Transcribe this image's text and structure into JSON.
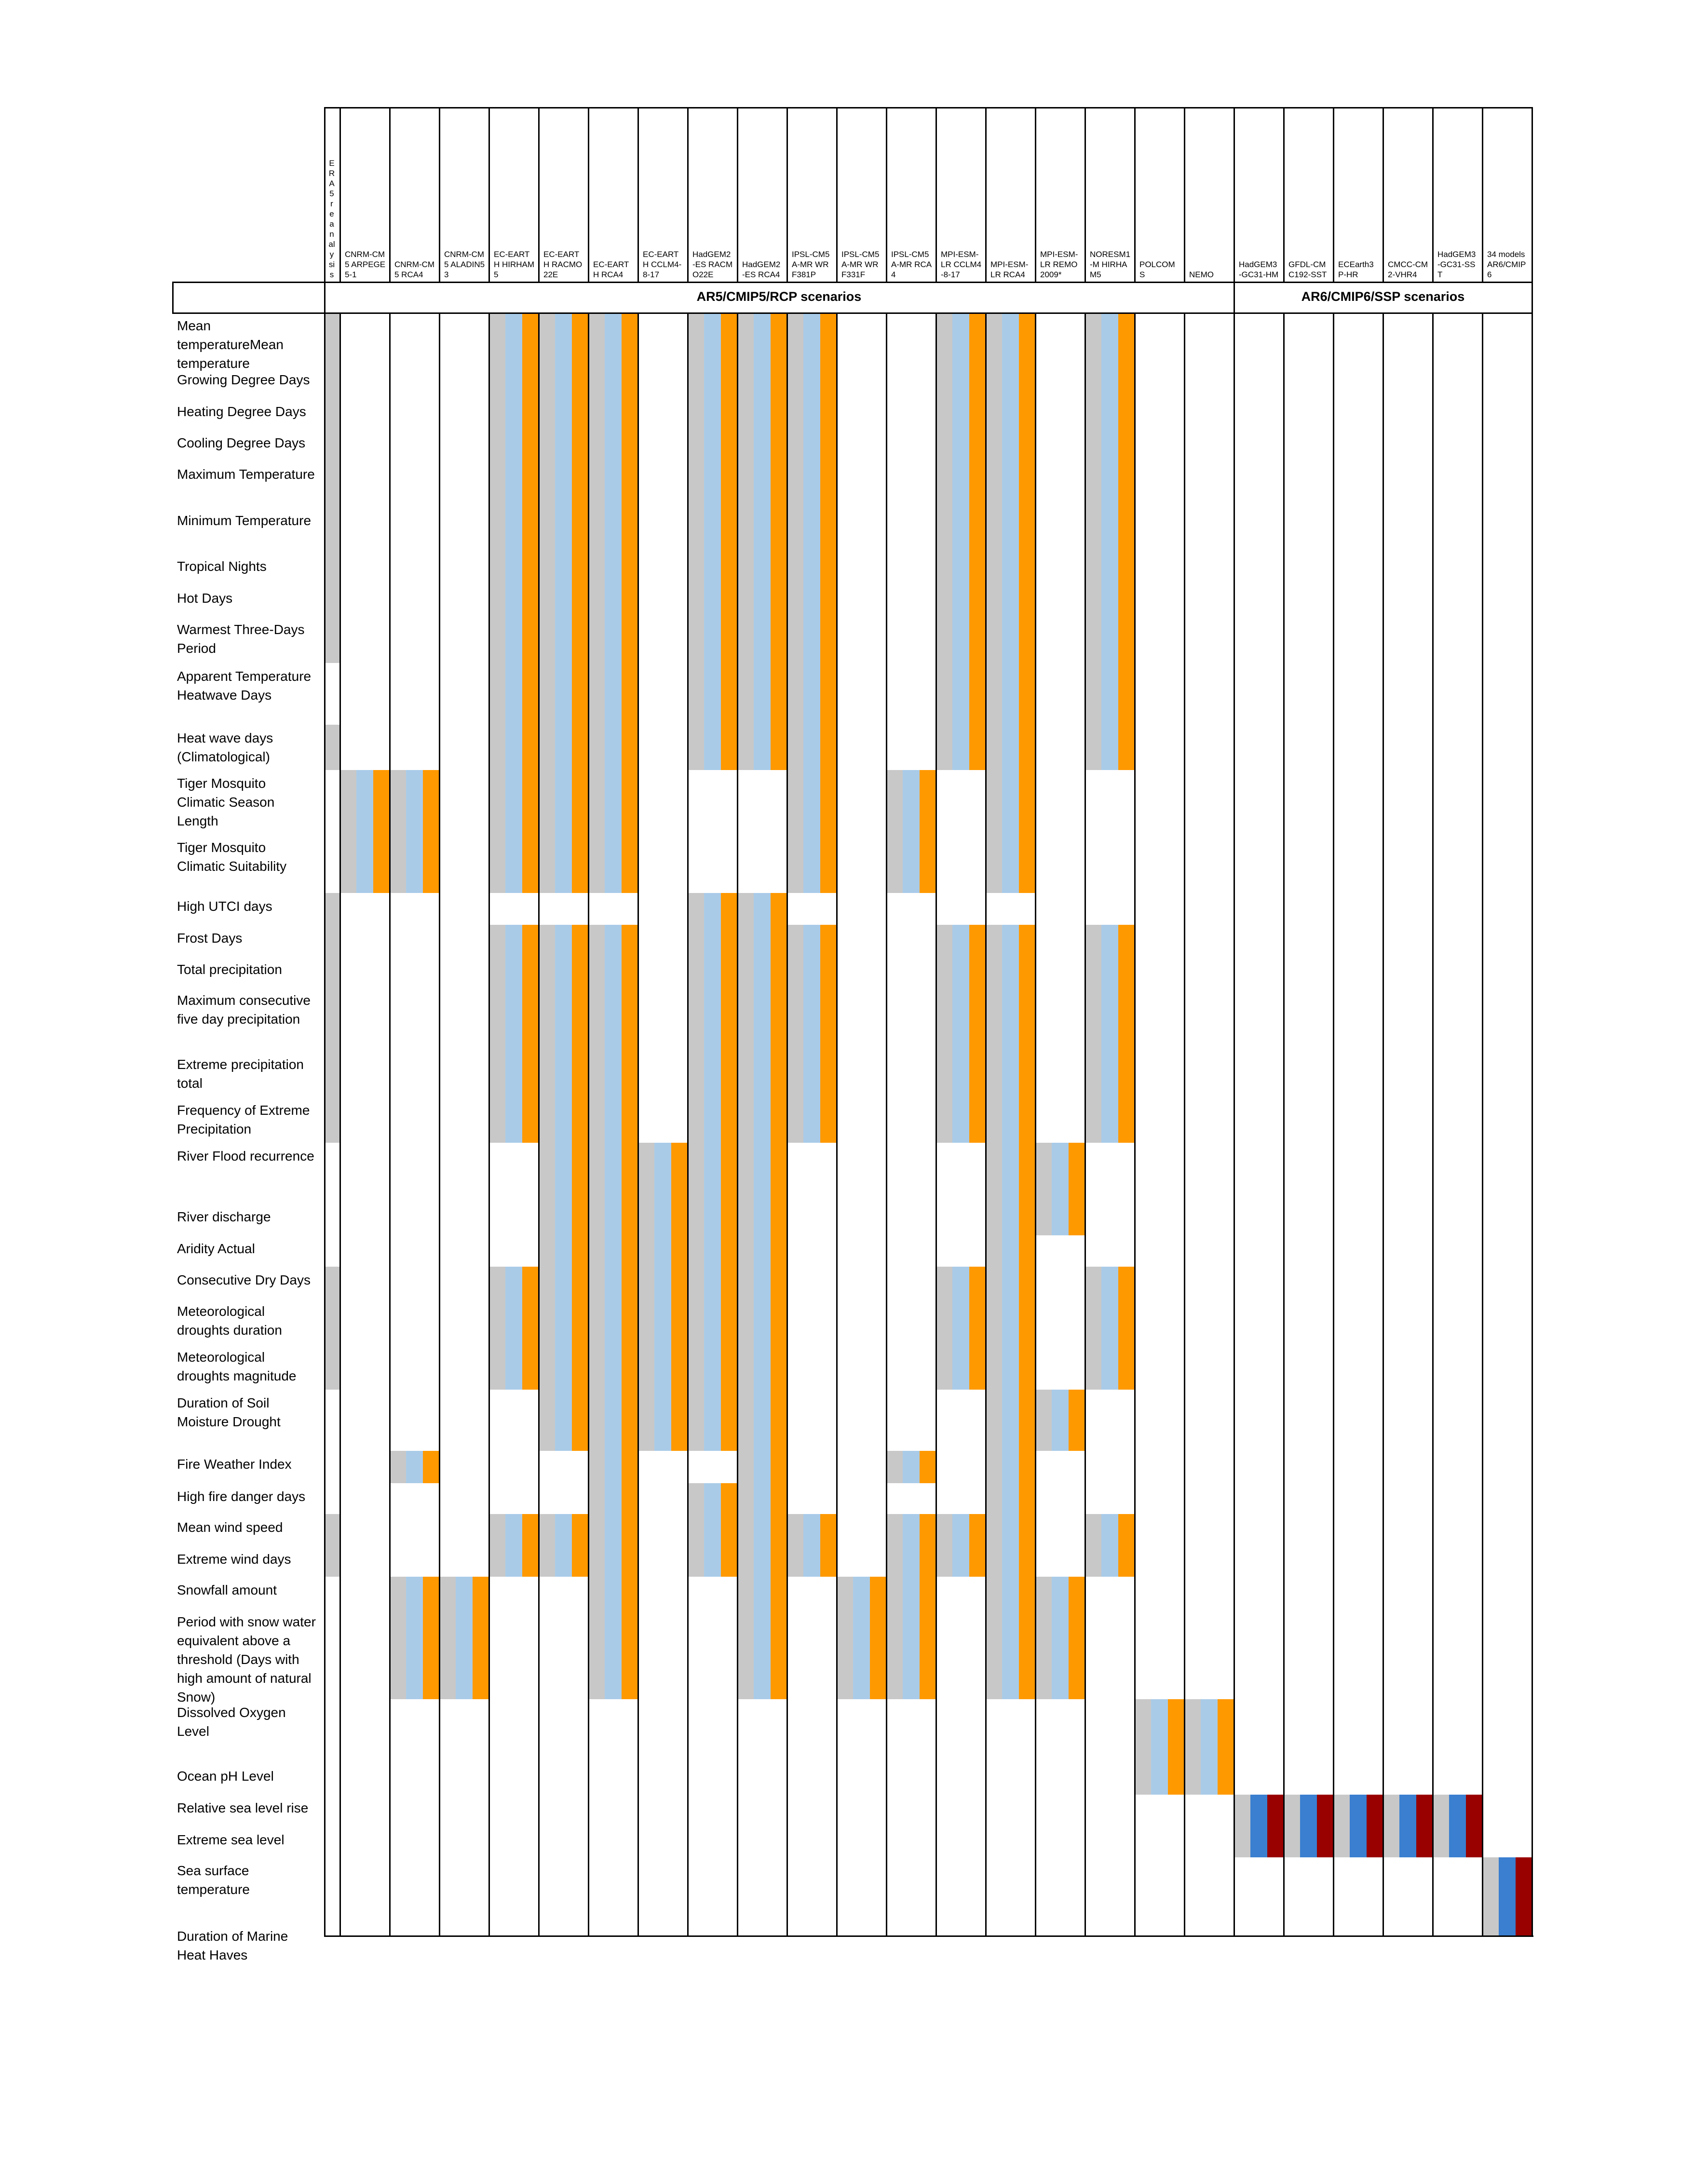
{
  "columns": [
    {
      "id": "era5",
      "label": "ERA5 reanalysis"
    },
    {
      "id": "c1",
      "label": "CNRM-CM5 ARPEGE5-1"
    },
    {
      "id": "c2",
      "label": "CNRM-CM5 RCA4"
    },
    {
      "id": "c3",
      "label": "CNRM-CM5 ALADIN53"
    },
    {
      "id": "c4",
      "label": "EC-EARTH HIRHAM5"
    },
    {
      "id": "c5",
      "label": "EC-EARTH RACMO22E"
    },
    {
      "id": "c6",
      "label": "EC-EARTH RCA4"
    },
    {
      "id": "c7",
      "label": "EC-EARTH CCLM4-8-17"
    },
    {
      "id": "c8",
      "label": "HadGEM2-ES RACMO22E"
    },
    {
      "id": "c9",
      "label": "HadGEM2-ES RCA4"
    },
    {
      "id": "c10",
      "label": "IPSL-CM5A-MR WRF381P"
    },
    {
      "id": "c11",
      "label": "IPSL-CM5A-MR WRF331F"
    },
    {
      "id": "c12",
      "label": "IPSL-CM5A-MR RCA4"
    },
    {
      "id": "c13",
      "label": "MPI-ESM-LR CCLM4-8-17"
    },
    {
      "id": "c14",
      "label": "MPI-ESM-LR RCA4"
    },
    {
      "id": "c15",
      "label": "MPI-ESM-LR REMO2009*"
    },
    {
      "id": "c16",
      "label": "NORESM1-M HIRHAM5"
    },
    {
      "id": "c17",
      "label": "POLCOMS"
    },
    {
      "id": "c18",
      "label": "NEMO"
    },
    {
      "id": "c19",
      "label": "HadGEM3-GC31-HM"
    },
    {
      "id": "c20",
      "label": "GFDL-CMC192-SST"
    },
    {
      "id": "c21",
      "label": "ECEarth3P-HR"
    },
    {
      "id": "c22",
      "label": "CMCC-CM2-VHR4"
    },
    {
      "id": "c23",
      "label": "HadGEM3-GC31-SST"
    },
    {
      "id": "c24",
      "label": "34 models AR6/CMIP6"
    }
  ],
  "scenarios": [
    {
      "label": "AR5/CMIP5/RCP scenarios",
      "from_col": 0,
      "to_col": 18
    },
    {
      "label": "AR6/CMIP6/SSP scenarios",
      "from_col": 19,
      "to_col": 24
    }
  ],
  "rows": [
    {
      "label": "Mean temperatureMean temperature"
    },
    {
      "label": "Growing Degree Days"
    },
    {
      "label": "Heating Degree Days"
    },
    {
      "label": "Cooling Degree Days"
    },
    {
      "label": "Maximum Temperature"
    },
    {
      "label": "Minimum Temperature"
    },
    {
      "label": "Tropical Nights"
    },
    {
      "label": "Hot Days"
    },
    {
      "label": "Warmest Three-Days Period"
    },
    {
      "label": "Apparent Temperature Heatwave Days"
    },
    {
      "label": "Heat wave days (Climatological)"
    },
    {
      "label": "Tiger Mosquito Climatic Season Length"
    },
    {
      "label": "Tiger Mosquito Climatic Suitability"
    },
    {
      "label": "High UTCI days"
    },
    {
      "label": "Frost Days"
    },
    {
      "label": "Total precipitation"
    },
    {
      "label": "Maximum consecutive five day precipitation"
    },
    {
      "label": "Extreme precipitation total"
    },
    {
      "label": "Frequency of Extreme Precipitation"
    },
    {
      "label": "River Flood recurrence"
    },
    {
      "label": "River discharge"
    },
    {
      "label": "Aridity Actual"
    },
    {
      "label": "Consecutive Dry Days"
    },
    {
      "label": "Meteorological droughts duration"
    },
    {
      "label": "Meteorological droughts magnitude"
    },
    {
      "label": "Duration of Soil Moisture Drought"
    },
    {
      "label": "Fire Weather Index"
    },
    {
      "label": "High fire danger days"
    },
    {
      "label": "Mean wind speed"
    },
    {
      "label": "Extreme wind days"
    },
    {
      "label": "Snowfall amount"
    },
    {
      "label": "Period with snow water equivalent above a threshold (Days with high amount of natural Snow)"
    },
    {
      "label": "Dissolved Oxygen Level"
    },
    {
      "label": "Ocean pH Level"
    },
    {
      "label": "Relative sea level rise"
    },
    {
      "label": "Extreme sea level"
    },
    {
      "label": "Sea surface temperature"
    },
    {
      "label": "Duration of Marine Heat Haves"
    }
  ],
  "palette": {
    "historical": "#c8c8c8",
    "rcp45": "#a9cbe8",
    "rcp85": "#ff9900",
    "ssp_mid": "#3a7fd0",
    "ssp_high": "#990000",
    "grid": "#000000"
  },
  "availability": {
    "era5": [
      [
        0,
        8
      ],
      [
        10,
        10
      ],
      [
        13,
        18
      ],
      [
        22,
        24
      ],
      [
        28,
        29
      ]
    ],
    "c1": [
      [
        11,
        12
      ]
    ],
    "c2": [
      [
        11,
        12
      ],
      [
        26,
        26
      ],
      [
        30,
        31
      ]
    ],
    "c3": [
      [
        30,
        31
      ]
    ],
    "c4": [
      [
        0,
        12
      ],
      [
        14,
        18
      ],
      [
        22,
        24
      ],
      [
        28,
        29
      ]
    ],
    "c5": [
      [
        0,
        12
      ],
      [
        14,
        25
      ],
      [
        28,
        29
      ]
    ],
    "c6": [
      [
        0,
        12
      ],
      [
        14,
        31
      ]
    ],
    "c7": [
      [
        19,
        25
      ]
    ],
    "c8": [
      [
        0,
        10
      ],
      [
        13,
        25
      ],
      [
        27,
        29
      ]
    ],
    "c9": [
      [
        0,
        10
      ],
      [
        13,
        31
      ]
    ],
    "c10": [
      [
        0,
        12
      ],
      [
        14,
        18
      ],
      [
        28,
        29
      ]
    ],
    "c11": [
      [
        30,
        31
      ]
    ],
    "c12": [
      [
        11,
        12
      ],
      [
        26,
        26
      ],
      [
        28,
        31
      ]
    ],
    "c13": [
      [
        0,
        10
      ],
      [
        14,
        18
      ],
      [
        22,
        24
      ],
      [
        28,
        29
      ]
    ],
    "c14": [
      [
        0,
        12
      ],
      [
        14,
        31
      ]
    ],
    "c15": [
      [
        19,
        20
      ],
      [
        25,
        25
      ],
      [
        30,
        31
      ]
    ],
    "c16": [
      [
        0,
        10
      ],
      [
        14,
        18
      ],
      [
        22,
        24
      ],
      [
        28,
        29
      ]
    ],
    "c17": [
      [
        32,
        33
      ]
    ],
    "c18": [
      [
        32,
        33
      ]
    ],
    "c19": [
      [
        34,
        35
      ]
    ],
    "c20": [
      [
        34,
        35
      ]
    ],
    "c21": [
      [
        34,
        35
      ]
    ],
    "c22": [
      [
        34,
        35
      ]
    ],
    "c23": [
      [
        34,
        35
      ]
    ],
    "c24": [
      [
        36,
        37
      ]
    ]
  }
}
